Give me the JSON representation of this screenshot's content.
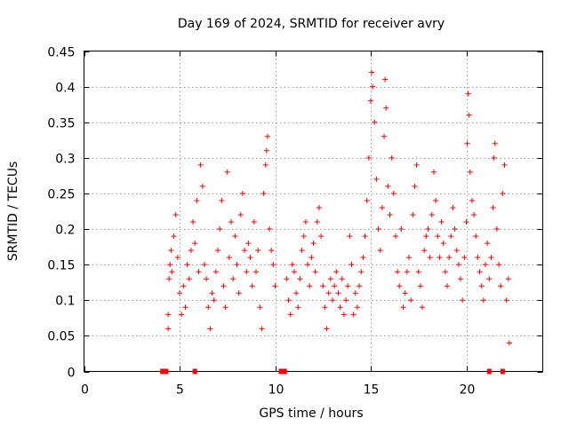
{
  "chart_data": {
    "type": "scatter",
    "title": "Day 169 of 2024, SRMTID for receiver avry",
    "xlabel": "GPS time / hours",
    "ylabel": "SRMTID / TECUs",
    "xlim": [
      0,
      24
    ],
    "ylim": [
      0,
      0.45
    ],
    "xticks": [
      0,
      5,
      10,
      15,
      20
    ],
    "yticks": [
      0,
      0.05,
      0.1,
      0.15,
      0.2,
      0.25,
      0.3,
      0.35,
      0.4,
      0.45
    ],
    "ytick_labels": [
      "0",
      "0.05",
      "0.1",
      "0.15",
      "0.2",
      "0.25",
      "0.3",
      "0.35",
      "0.4",
      "0.45"
    ],
    "grid": true,
    "legend": "none",
    "marker_color": "#ff0000",
    "marker": "plus",
    "series": [
      {
        "name": "SRMTID",
        "points": [
          [
            4.4,
            0.06
          ],
          [
            4.4,
            0.08
          ],
          [
            4.45,
            0.13
          ],
          [
            4.5,
            0.15
          ],
          [
            4.55,
            0.17
          ],
          [
            4.6,
            0.14
          ],
          [
            4.7,
            0.19
          ],
          [
            4.8,
            0.22
          ],
          [
            4.9,
            0.16
          ],
          [
            5.0,
            0.11
          ],
          [
            5.1,
            0.08
          ],
          [
            5.2,
            0.12
          ],
          [
            5.3,
            0.09
          ],
          [
            5.4,
            0.15
          ],
          [
            5.5,
            0.13
          ],
          [
            5.6,
            0.17
          ],
          [
            5.7,
            0.21
          ],
          [
            5.8,
            0.18
          ],
          [
            5.9,
            0.24
          ],
          [
            6.0,
            0.14
          ],
          [
            6.1,
            0.29
          ],
          [
            6.2,
            0.26
          ],
          [
            6.3,
            0.15
          ],
          [
            6.4,
            0.13
          ],
          [
            6.5,
            0.09
          ],
          [
            6.6,
            0.06
          ],
          [
            6.7,
            0.11
          ],
          [
            6.8,
            0.1
          ],
          [
            6.9,
            0.14
          ],
          [
            7.0,
            0.17
          ],
          [
            7.1,
            0.2
          ],
          [
            7.2,
            0.24
          ],
          [
            7.3,
            0.12
          ],
          [
            7.4,
            0.09
          ],
          [
            7.5,
            0.28
          ],
          [
            7.6,
            0.16
          ],
          [
            7.7,
            0.21
          ],
          [
            7.8,
            0.13
          ],
          [
            7.9,
            0.19
          ],
          [
            8.0,
            0.15
          ],
          [
            8.1,
            0.11
          ],
          [
            8.2,
            0.22
          ],
          [
            8.3,
            0.25
          ],
          [
            8.4,
            0.17
          ],
          [
            8.5,
            0.14
          ],
          [
            8.6,
            0.18
          ],
          [
            8.7,
            0.16
          ],
          [
            8.8,
            0.12
          ],
          [
            8.9,
            0.21
          ],
          [
            9.0,
            0.14
          ],
          [
            9.1,
            0.17
          ],
          [
            9.2,
            0.09
          ],
          [
            9.3,
            0.06
          ],
          [
            9.4,
            0.25
          ],
          [
            9.5,
            0.29
          ],
          [
            9.55,
            0.31
          ],
          [
            9.6,
            0.33
          ],
          [
            9.7,
            0.2
          ],
          [
            9.8,
            0.17
          ],
          [
            9.9,
            0.15
          ],
          [
            10.0,
            0.12
          ],
          [
            10.6,
            0.13
          ],
          [
            10.7,
            0.1
          ],
          [
            10.8,
            0.08
          ],
          [
            10.9,
            0.15
          ],
          [
            11.0,
            0.14
          ],
          [
            11.1,
            0.11
          ],
          [
            11.2,
            0.09
          ],
          [
            11.3,
            0.13
          ],
          [
            11.4,
            0.17
          ],
          [
            11.5,
            0.19
          ],
          [
            11.6,
            0.21
          ],
          [
            11.7,
            0.15
          ],
          [
            11.8,
            0.12
          ],
          [
            11.9,
            0.16
          ],
          [
            12.0,
            0.18
          ],
          [
            12.1,
            0.14
          ],
          [
            12.2,
            0.21
          ],
          [
            12.3,
            0.23
          ],
          [
            12.4,
            0.19
          ],
          [
            12.5,
            0.12
          ],
          [
            12.6,
            0.09
          ],
          [
            12.7,
            0.06
          ],
          [
            12.8,
            0.11
          ],
          [
            12.9,
            0.13
          ],
          [
            13.0,
            0.1
          ],
          [
            13.1,
            0.12
          ],
          [
            13.2,
            0.14
          ],
          [
            13.3,
            0.11
          ],
          [
            13.4,
            0.09
          ],
          [
            13.5,
            0.13
          ],
          [
            13.6,
            0.08
          ],
          [
            13.7,
            0.1
          ],
          [
            13.8,
            0.12
          ],
          [
            13.9,
            0.19
          ],
          [
            14.0,
            0.15
          ],
          [
            14.1,
            0.08
          ],
          [
            14.2,
            0.11
          ],
          [
            14.3,
            0.09
          ],
          [
            14.4,
            0.12
          ],
          [
            14.5,
            0.14
          ],
          [
            14.6,
            0.16
          ],
          [
            14.7,
            0.19
          ],
          [
            14.8,
            0.24
          ],
          [
            14.9,
            0.3
          ],
          [
            15.0,
            0.38
          ],
          [
            15.05,
            0.42
          ],
          [
            15.1,
            0.4
          ],
          [
            15.2,
            0.35
          ],
          [
            15.3,
            0.27
          ],
          [
            15.4,
            0.2
          ],
          [
            15.5,
            0.17
          ],
          [
            15.6,
            0.23
          ],
          [
            15.7,
            0.33
          ],
          [
            15.75,
            0.41
          ],
          [
            15.8,
            0.37
          ],
          [
            15.9,
            0.26
          ],
          [
            16.0,
            0.22
          ],
          [
            16.1,
            0.3
          ],
          [
            16.2,
            0.25
          ],
          [
            16.3,
            0.19
          ],
          [
            16.4,
            0.14
          ],
          [
            16.5,
            0.12
          ],
          [
            16.6,
            0.2
          ],
          [
            16.7,
            0.09
          ],
          [
            16.8,
            0.11
          ],
          [
            16.9,
            0.14
          ],
          [
            17.0,
            0.16
          ],
          [
            17.1,
            0.1
          ],
          [
            17.2,
            0.22
          ],
          [
            17.3,
            0.26
          ],
          [
            17.4,
            0.29
          ],
          [
            17.5,
            0.14
          ],
          [
            17.6,
            0.12
          ],
          [
            17.7,
            0.09
          ],
          [
            17.8,
            0.17
          ],
          [
            17.9,
            0.19
          ],
          [
            18.0,
            0.2
          ],
          [
            18.1,
            0.16
          ],
          [
            18.2,
            0.22
          ],
          [
            18.3,
            0.28
          ],
          [
            18.4,
            0.24
          ],
          [
            18.5,
            0.19
          ],
          [
            18.6,
            0.16
          ],
          [
            18.7,
            0.21
          ],
          [
            18.8,
            0.18
          ],
          [
            18.9,
            0.14
          ],
          [
            19.0,
            0.12
          ],
          [
            19.1,
            0.16
          ],
          [
            19.2,
            0.19
          ],
          [
            19.3,
            0.23
          ],
          [
            19.4,
            0.2
          ],
          [
            19.5,
            0.17
          ],
          [
            19.6,
            0.15
          ],
          [
            19.7,
            0.13
          ],
          [
            19.8,
            0.1
          ],
          [
            19.9,
            0.16
          ],
          [
            20.0,
            0.21
          ],
          [
            20.05,
            0.32
          ],
          [
            20.1,
            0.39
          ],
          [
            20.15,
            0.36
          ],
          [
            20.2,
            0.28
          ],
          [
            20.3,
            0.24
          ],
          [
            20.4,
            0.22
          ],
          [
            20.5,
            0.19
          ],
          [
            20.6,
            0.16
          ],
          [
            20.7,
            0.14
          ],
          [
            20.8,
            0.12
          ],
          [
            20.9,
            0.1
          ],
          [
            21.0,
            0.15
          ],
          [
            21.1,
            0.18
          ],
          [
            21.2,
            0.13
          ],
          [
            21.3,
            0.16
          ],
          [
            21.4,
            0.23
          ],
          [
            21.45,
            0.3
          ],
          [
            21.5,
            0.32
          ],
          [
            21.6,
            0.2
          ],
          [
            21.7,
            0.15
          ],
          [
            21.8,
            0.12
          ],
          [
            21.9,
            0.25
          ],
          [
            22.0,
            0.29
          ],
          [
            22.1,
            0.1
          ],
          [
            22.2,
            0.13
          ],
          [
            22.25,
            0.04
          ]
        ]
      }
    ],
    "zero_markers_x": [
      4.1,
      4.2,
      4.3,
      5.8,
      10.3,
      10.5,
      21.2,
      21.9
    ]
  }
}
